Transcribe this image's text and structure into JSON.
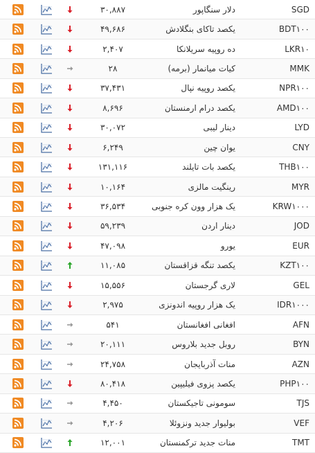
{
  "table": {
    "rows": [
      [
        "SGD",
        "دلار سنگاپور",
        "۳۰,۸۸۷",
        "down"
      ],
      [
        "BDT۱۰۰",
        "یکصد تاکای بنگلادش",
        "۴۹,۶۸۶",
        "down"
      ],
      [
        "LKR۱۰",
        "ده روپیه سریلانکا",
        "۲,۴۰۷",
        "down"
      ],
      [
        "MMK",
        "کیات میانمار (برمه)",
        "۲۸",
        "flat"
      ],
      [
        "NPR۱۰۰",
        "یکصد روپیه نپال",
        "۳۷,۴۳۱",
        "down"
      ],
      [
        "AMD۱۰۰",
        "یکصد درام ارمنستان",
        "۸,۶۹۶",
        "down"
      ],
      [
        "LYD",
        "دینار لیبی",
        "۳۰,۰۷۲",
        "down"
      ],
      [
        "CNY",
        "یوان چین",
        "۶,۲۴۹",
        "down"
      ],
      [
        "THB۱۰۰",
        "یکصد بات تایلند",
        "۱۳۱,۱۱۶",
        "down"
      ],
      [
        "MYR",
        "رینگیت مالزی",
        "۱۰,۱۶۴",
        "down"
      ],
      [
        "KRW۱۰۰۰",
        "یک هزار وون کره جنوبی",
        "۳۶,۵۳۴",
        "down"
      ],
      [
        "JOD",
        "دینار اردن",
        "۵۹,۲۳۹",
        "down"
      ],
      [
        "EUR",
        "یورو",
        "۴۷,۰۹۸",
        "down"
      ],
      [
        "KZT۱۰۰",
        "یکصد تنگه قزاقستان",
        "۱۱,۰۸۵",
        "up"
      ],
      [
        "GEL",
        "لاری گرجستان",
        "۱۵,۵۵۶",
        "down"
      ],
      [
        "IDR۱۰۰۰",
        "یک هزار روپیه اندونزی",
        "۲,۹۷۵",
        "down"
      ],
      [
        "AFN",
        "افغانی افغانستان",
        "۵۴۱",
        "flat"
      ],
      [
        "BYN",
        "روبل جدید بلاروس",
        "۲۰,۱۱۱",
        "flat"
      ],
      [
        "AZN",
        "منات آذربایجان",
        "۲۴,۷۵۸",
        "flat"
      ],
      [
        "PHP۱۰۰",
        "یکصد پزوی فیلیپین",
        "۸۰,۴۱۸",
        "down"
      ],
      [
        "TJS",
        "سومونی تاجیکستان",
        "۴,۴۵۰",
        "flat"
      ],
      [
        "VEF",
        "بولیوار جدید ونزوئلا",
        "۴,۲۰۶",
        "flat"
      ],
      [
        "TMT",
        "منات جدید ترکمنستان",
        "۱۲,۰۰۱",
        "up"
      ]
    ]
  }
}
